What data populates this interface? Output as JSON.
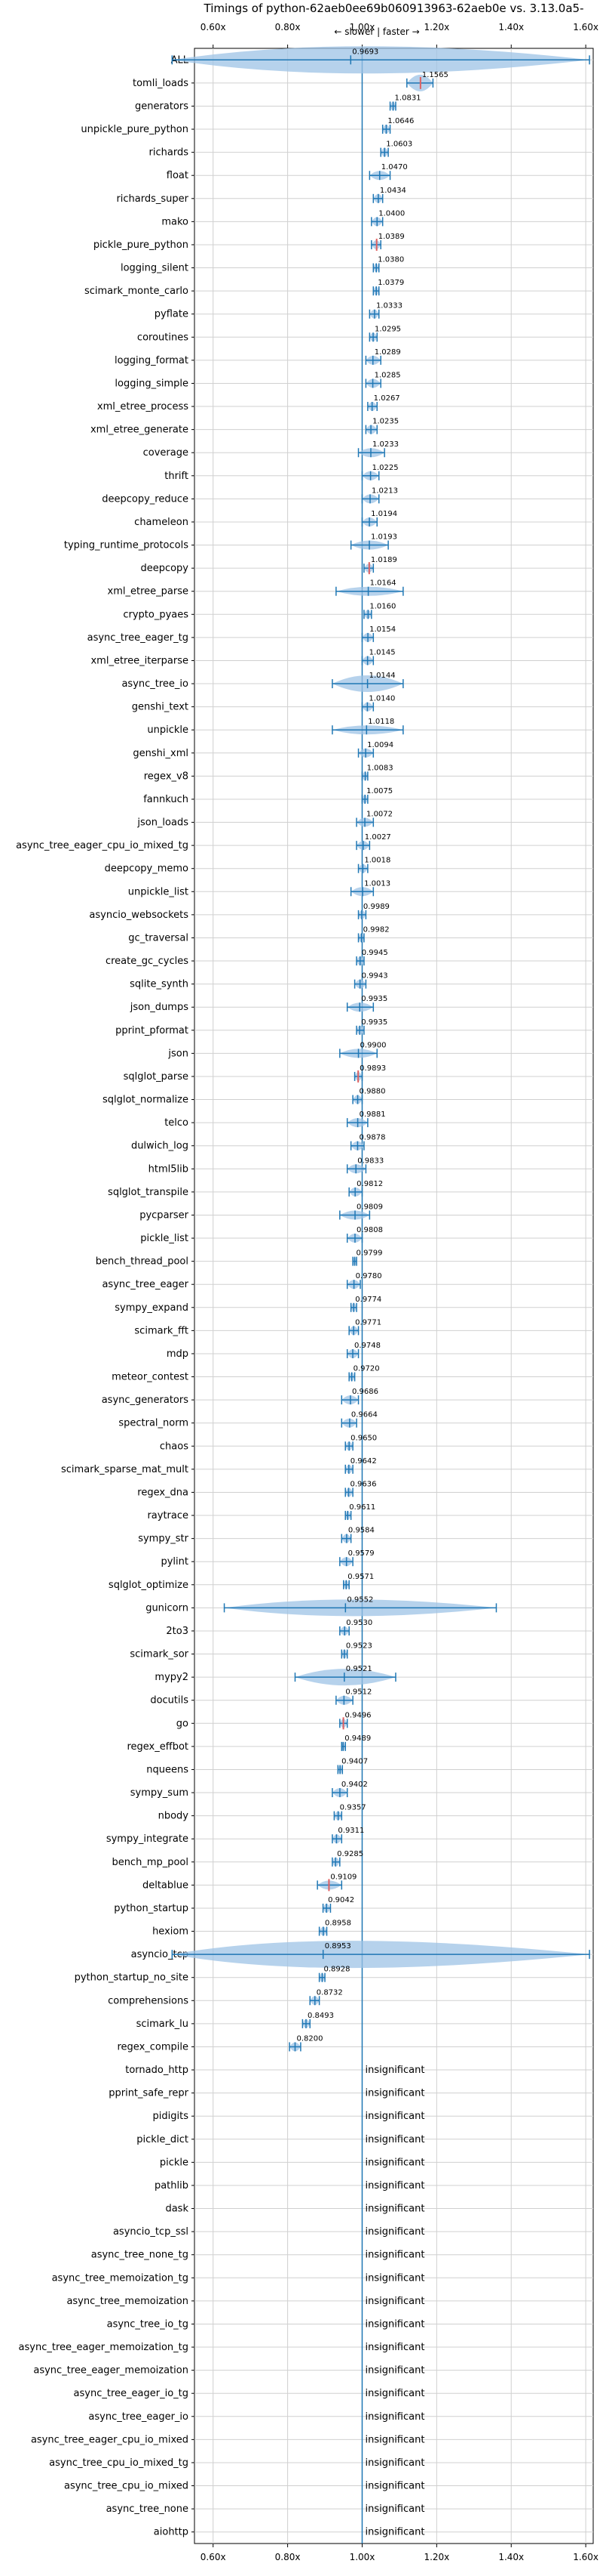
{
  "chart_data": {
    "type": "violin",
    "title": "Timings of python-62aeb0ee69b060913963-62aeb0e vs. 3.13.0a5-",
    "direction_note": "← slower | faster →",
    "x_ticks": [
      "0.60x",
      "0.80x",
      "1.00x",
      "1.20x",
      "1.40x",
      "1.60x"
    ],
    "x_tick_values": [
      0.6,
      0.8,
      1.0,
      1.2,
      1.4,
      1.6
    ],
    "xlim": [
      0.55,
      1.62
    ],
    "reference_line": 1.0,
    "grid": true,
    "insignificant_label": "insignificant",
    "colors": {
      "violin": "#9dc3e6",
      "line": "#1f77b4",
      "significant_marker": "#e06060",
      "grid": "#d0d0d0"
    },
    "benchmarks": [
      {
        "name": "ALL",
        "value": 0.9693,
        "label": "0.9693",
        "lo": 0.49,
        "hi": 1.61,
        "spread": "wide"
      },
      {
        "name": "tomli_loads",
        "value": 1.1565,
        "label": "1.1565",
        "lo": 1.12,
        "hi": 1.19,
        "spread": "mid",
        "marked": true
      },
      {
        "name": "generators",
        "value": 1.0831,
        "label": "1.0831",
        "lo": 1.075,
        "hi": 1.09,
        "spread": "narrow"
      },
      {
        "name": "unpickle_pure_python",
        "value": 1.0646,
        "label": "1.0646",
        "lo": 1.055,
        "hi": 1.075,
        "spread": "narrow"
      },
      {
        "name": "richards",
        "value": 1.0603,
        "label": "1.0603",
        "lo": 1.05,
        "hi": 1.07,
        "spread": "narrow"
      },
      {
        "name": "float",
        "value": 1.047,
        "label": "1.0470",
        "lo": 1.02,
        "hi": 1.075,
        "spread": "narrow"
      },
      {
        "name": "richards_super",
        "value": 1.0434,
        "label": "1.0434",
        "lo": 1.03,
        "hi": 1.055,
        "spread": "narrow"
      },
      {
        "name": "mako",
        "value": 1.04,
        "label": "1.0400",
        "lo": 1.025,
        "hi": 1.055,
        "spread": "narrow"
      },
      {
        "name": "pickle_pure_python",
        "value": 1.0389,
        "label": "1.0389",
        "lo": 1.025,
        "hi": 1.05,
        "spread": "narrow",
        "marked": true
      },
      {
        "name": "logging_silent",
        "value": 1.038,
        "label": "1.0380",
        "lo": 1.03,
        "hi": 1.045,
        "spread": "narrow"
      },
      {
        "name": "scimark_monte_carlo",
        "value": 1.0379,
        "label": "1.0379",
        "lo": 1.03,
        "hi": 1.045,
        "spread": "narrow"
      },
      {
        "name": "pyflate",
        "value": 1.0333,
        "label": "1.0333",
        "lo": 1.02,
        "hi": 1.045,
        "spread": "narrow"
      },
      {
        "name": "coroutines",
        "value": 1.0295,
        "label": "1.0295",
        "lo": 1.02,
        "hi": 1.04,
        "spread": "narrow"
      },
      {
        "name": "logging_format",
        "value": 1.0289,
        "label": "1.0289",
        "lo": 1.01,
        "hi": 1.05,
        "spread": "narrow"
      },
      {
        "name": "logging_simple",
        "value": 1.0285,
        "label": "1.0285",
        "lo": 1.01,
        "hi": 1.05,
        "spread": "narrow"
      },
      {
        "name": "xml_etree_process",
        "value": 1.0267,
        "label": "1.0267",
        "lo": 1.015,
        "hi": 1.04,
        "spread": "narrow"
      },
      {
        "name": "xml_etree_generate",
        "value": 1.0235,
        "label": "1.0235",
        "lo": 1.01,
        "hi": 1.04,
        "spread": "narrow"
      },
      {
        "name": "coverage",
        "value": 1.0233,
        "label": "1.0233",
        "lo": 0.99,
        "hi": 1.06,
        "spread": "narrow"
      },
      {
        "name": "thrift",
        "value": 1.0225,
        "label": "1.0225",
        "lo": 1.0,
        "hi": 1.045,
        "spread": "narrow"
      },
      {
        "name": "deepcopy_reduce",
        "value": 1.0213,
        "label": "1.0213",
        "lo": 1.0,
        "hi": 1.045,
        "spread": "narrow"
      },
      {
        "name": "chameleon",
        "value": 1.0194,
        "label": "1.0194",
        "lo": 1.0,
        "hi": 1.04,
        "spread": "narrow"
      },
      {
        "name": "typing_runtime_protocols",
        "value": 1.0193,
        "label": "1.0193",
        "lo": 0.97,
        "hi": 1.07,
        "spread": "narrow"
      },
      {
        "name": "deepcopy",
        "value": 1.0189,
        "label": "1.0189",
        "lo": 1.005,
        "hi": 1.03,
        "spread": "narrow",
        "marked": true
      },
      {
        "name": "xml_etree_parse",
        "value": 1.0164,
        "label": "1.0164",
        "lo": 0.93,
        "hi": 1.11,
        "spread": "narrow"
      },
      {
        "name": "crypto_pyaes",
        "value": 1.016,
        "label": "1.0160",
        "lo": 1.005,
        "hi": 1.025,
        "spread": "narrow"
      },
      {
        "name": "async_tree_eager_tg",
        "value": 1.0154,
        "label": "1.0154",
        "lo": 1.0,
        "hi": 1.03,
        "spread": "narrow"
      },
      {
        "name": "xml_etree_iterparse",
        "value": 1.0145,
        "label": "1.0145",
        "lo": 1.0,
        "hi": 1.03,
        "spread": "narrow"
      },
      {
        "name": "async_tree_io",
        "value": 1.0144,
        "label": "1.0144",
        "lo": 0.92,
        "hi": 1.11,
        "spread": "mid"
      },
      {
        "name": "genshi_text",
        "value": 1.014,
        "label": "1.0140",
        "lo": 1.0,
        "hi": 1.03,
        "spread": "narrow"
      },
      {
        "name": "unpickle",
        "value": 1.0118,
        "label": "1.0118",
        "lo": 0.92,
        "hi": 1.11,
        "spread": "narrow"
      },
      {
        "name": "genshi_xml",
        "value": 1.0094,
        "label": "1.0094",
        "lo": 0.99,
        "hi": 1.03,
        "spread": "narrow"
      },
      {
        "name": "regex_v8",
        "value": 1.0083,
        "label": "1.0083",
        "lo": 1.0,
        "hi": 1.015,
        "spread": "narrow"
      },
      {
        "name": "fannkuch",
        "value": 1.0075,
        "label": "1.0075",
        "lo": 1.0,
        "hi": 1.015,
        "spread": "narrow"
      },
      {
        "name": "json_loads",
        "value": 1.0072,
        "label": "1.0072",
        "lo": 0.985,
        "hi": 1.03,
        "spread": "narrow"
      },
      {
        "name": "async_tree_eager_cpu_io_mixed_tg",
        "value": 1.0027,
        "label": "1.0027",
        "lo": 0.985,
        "hi": 1.02,
        "spread": "narrow"
      },
      {
        "name": "deepcopy_memo",
        "value": 1.0018,
        "label": "1.0018",
        "lo": 0.99,
        "hi": 1.015,
        "spread": "narrow"
      },
      {
        "name": "unpickle_list",
        "value": 1.0013,
        "label": "1.0013",
        "lo": 0.97,
        "hi": 1.03,
        "spread": "narrow"
      },
      {
        "name": "asyncio_websockets",
        "value": 0.9989,
        "label": "0.9989",
        "lo": 0.99,
        "hi": 1.01,
        "spread": "narrow"
      },
      {
        "name": "gc_traversal",
        "value": 0.9982,
        "label": "0.9982",
        "lo": 0.99,
        "hi": 1.005,
        "spread": "narrow"
      },
      {
        "name": "create_gc_cycles",
        "value": 0.9945,
        "label": "0.9945",
        "lo": 0.985,
        "hi": 1.005,
        "spread": "narrow"
      },
      {
        "name": "sqlite_synth",
        "value": 0.9943,
        "label": "0.9943",
        "lo": 0.98,
        "hi": 1.01,
        "spread": "narrow"
      },
      {
        "name": "json_dumps",
        "value": 0.9935,
        "label": "0.9935",
        "lo": 0.96,
        "hi": 1.03,
        "spread": "narrow"
      },
      {
        "name": "pprint_pformat",
        "value": 0.9935,
        "label": "0.9935",
        "lo": 0.985,
        "hi": 1.005,
        "spread": "narrow"
      },
      {
        "name": "json",
        "value": 0.99,
        "label": "0.9900",
        "lo": 0.94,
        "hi": 1.04,
        "spread": "narrow"
      },
      {
        "name": "sqlglot_parse",
        "value": 0.9893,
        "label": "0.9893",
        "lo": 0.98,
        "hi": 1.0,
        "spread": "narrow",
        "marked": true
      },
      {
        "name": "sqlglot_normalize",
        "value": 0.988,
        "label": "0.9880",
        "lo": 0.975,
        "hi": 1.0,
        "spread": "narrow"
      },
      {
        "name": "telco",
        "value": 0.9881,
        "label": "0.9881",
        "lo": 0.96,
        "hi": 1.015,
        "spread": "narrow"
      },
      {
        "name": "dulwich_log",
        "value": 0.9878,
        "label": "0.9878",
        "lo": 0.97,
        "hi": 1.005,
        "spread": "narrow"
      },
      {
        "name": "html5lib",
        "value": 0.9833,
        "label": "0.9833",
        "lo": 0.96,
        "hi": 1.01,
        "spread": "narrow"
      },
      {
        "name": "sqlglot_transpile",
        "value": 0.9812,
        "label": "0.9812",
        "lo": 0.965,
        "hi": 1.0,
        "spread": "narrow"
      },
      {
        "name": "pycparser",
        "value": 0.9809,
        "label": "0.9809",
        "lo": 0.94,
        "hi": 1.02,
        "spread": "narrow"
      },
      {
        "name": "pickle_list",
        "value": 0.9808,
        "label": "0.9808",
        "lo": 0.96,
        "hi": 1.0,
        "spread": "narrow"
      },
      {
        "name": "bench_thread_pool",
        "value": 0.9799,
        "label": "0.9799",
        "lo": 0.975,
        "hi": 0.985,
        "spread": "narrow"
      },
      {
        "name": "async_tree_eager",
        "value": 0.978,
        "label": "0.9780",
        "lo": 0.96,
        "hi": 0.995,
        "spread": "narrow"
      },
      {
        "name": "sympy_expand",
        "value": 0.9774,
        "label": "0.9774",
        "lo": 0.97,
        "hi": 0.985,
        "spread": "narrow"
      },
      {
        "name": "scimark_fft",
        "value": 0.9771,
        "label": "0.9771",
        "lo": 0.965,
        "hi": 0.99,
        "spread": "narrow"
      },
      {
        "name": "mdp",
        "value": 0.9748,
        "label": "0.9748",
        "lo": 0.96,
        "hi": 0.99,
        "spread": "narrow"
      },
      {
        "name": "meteor_contest",
        "value": 0.972,
        "label": "0.9720",
        "lo": 0.965,
        "hi": 0.98,
        "spread": "narrow"
      },
      {
        "name": "async_generators",
        "value": 0.9686,
        "label": "0.9686",
        "lo": 0.945,
        "hi": 0.99,
        "spread": "narrow"
      },
      {
        "name": "spectral_norm",
        "value": 0.9664,
        "label": "0.9664",
        "lo": 0.945,
        "hi": 0.985,
        "spread": "narrow"
      },
      {
        "name": "chaos",
        "value": 0.965,
        "label": "0.9650",
        "lo": 0.955,
        "hi": 0.975,
        "spread": "narrow"
      },
      {
        "name": "scimark_sparse_mat_mult",
        "value": 0.9642,
        "label": "0.9642",
        "lo": 0.955,
        "hi": 0.975,
        "spread": "narrow"
      },
      {
        "name": "regex_dna",
        "value": 0.9636,
        "label": "0.9636",
        "lo": 0.955,
        "hi": 0.975,
        "spread": "narrow"
      },
      {
        "name": "raytrace",
        "value": 0.9611,
        "label": "0.9611",
        "lo": 0.955,
        "hi": 0.97,
        "spread": "narrow"
      },
      {
        "name": "sympy_str",
        "value": 0.9584,
        "label": "0.9584",
        "lo": 0.945,
        "hi": 0.97,
        "spread": "narrow"
      },
      {
        "name": "pylint",
        "value": 0.9579,
        "label": "0.9579",
        "lo": 0.94,
        "hi": 0.975,
        "spread": "narrow"
      },
      {
        "name": "sqlglot_optimize",
        "value": 0.9571,
        "label": "0.9571",
        "lo": 0.95,
        "hi": 0.965,
        "spread": "narrow"
      },
      {
        "name": "gunicorn",
        "value": 0.9552,
        "label": "0.9552",
        "lo": 0.63,
        "hi": 1.36,
        "spread": "mid"
      },
      {
        "name": "2to3",
        "value": 0.953,
        "label": "0.9530",
        "lo": 0.94,
        "hi": 0.965,
        "spread": "narrow"
      },
      {
        "name": "scimark_sor",
        "value": 0.9523,
        "label": "0.9523",
        "lo": 0.945,
        "hi": 0.96,
        "spread": "narrow"
      },
      {
        "name": "mypy2",
        "value": 0.9521,
        "label": "0.9521",
        "lo": 0.82,
        "hi": 1.09,
        "spread": "mid"
      },
      {
        "name": "docutils",
        "value": 0.9512,
        "label": "0.9512",
        "lo": 0.93,
        "hi": 0.975,
        "spread": "narrow"
      },
      {
        "name": "go",
        "value": 0.9496,
        "label": "0.9496",
        "lo": 0.94,
        "hi": 0.96,
        "spread": "narrow",
        "marked": true
      },
      {
        "name": "regex_effbot",
        "value": 0.9489,
        "label": "0.9489",
        "lo": 0.945,
        "hi": 0.955,
        "spread": "narrow"
      },
      {
        "name": "nqueens",
        "value": 0.9407,
        "label": "0.9407",
        "lo": 0.935,
        "hi": 0.947,
        "spread": "narrow"
      },
      {
        "name": "sympy_sum",
        "value": 0.9402,
        "label": "0.9402",
        "lo": 0.92,
        "hi": 0.96,
        "spread": "narrow"
      },
      {
        "name": "nbody",
        "value": 0.9357,
        "label": "0.9357",
        "lo": 0.925,
        "hi": 0.945,
        "spread": "narrow"
      },
      {
        "name": "sympy_integrate",
        "value": 0.9311,
        "label": "0.9311",
        "lo": 0.92,
        "hi": 0.945,
        "spread": "narrow"
      },
      {
        "name": "bench_mp_pool",
        "value": 0.9285,
        "label": "0.9285",
        "lo": 0.92,
        "hi": 0.94,
        "spread": "narrow"
      },
      {
        "name": "deltablue",
        "value": 0.9109,
        "label": "0.9109",
        "lo": 0.88,
        "hi": 0.945,
        "spread": "narrow",
        "marked": true
      },
      {
        "name": "python_startup",
        "value": 0.9042,
        "label": "0.9042",
        "lo": 0.895,
        "hi": 0.915,
        "spread": "narrow"
      },
      {
        "name": "hexiom",
        "value": 0.8958,
        "label": "0.8958",
        "lo": 0.885,
        "hi": 0.905,
        "spread": "narrow"
      },
      {
        "name": "asyncio_tcp",
        "value": 0.8953,
        "label": "0.8953",
        "lo": 0.49,
        "hi": 1.61,
        "spread": "wide"
      },
      {
        "name": "python_startup_no_site",
        "value": 0.8928,
        "label": "0.8928",
        "lo": 0.885,
        "hi": 0.9,
        "spread": "narrow"
      },
      {
        "name": "comprehensions",
        "value": 0.8732,
        "label": "0.8732",
        "lo": 0.86,
        "hi": 0.885,
        "spread": "narrow"
      },
      {
        "name": "scimark_lu",
        "value": 0.8493,
        "label": "0.8493",
        "lo": 0.84,
        "hi": 0.86,
        "spread": "narrow"
      },
      {
        "name": "regex_compile",
        "value": 0.82,
        "label": "0.8200",
        "lo": 0.805,
        "hi": 0.835,
        "spread": "narrow"
      },
      {
        "name": "tornado_http",
        "insignificant": true
      },
      {
        "name": "pprint_safe_repr",
        "insignificant": true
      },
      {
        "name": "pidigits",
        "insignificant": true
      },
      {
        "name": "pickle_dict",
        "insignificant": true
      },
      {
        "name": "pickle",
        "insignificant": true
      },
      {
        "name": "pathlib",
        "insignificant": true
      },
      {
        "name": "dask",
        "insignificant": true
      },
      {
        "name": "asyncio_tcp_ssl",
        "insignificant": true
      },
      {
        "name": "async_tree_none_tg",
        "insignificant": true
      },
      {
        "name": "async_tree_memoization_tg",
        "insignificant": true
      },
      {
        "name": "async_tree_memoization",
        "insignificant": true
      },
      {
        "name": "async_tree_io_tg",
        "insignificant": true
      },
      {
        "name": "async_tree_eager_memoization_tg",
        "insignificant": true
      },
      {
        "name": "async_tree_eager_memoization",
        "insignificant": true
      },
      {
        "name": "async_tree_eager_io_tg",
        "insignificant": true
      },
      {
        "name": "async_tree_eager_io",
        "insignificant": true
      },
      {
        "name": "async_tree_eager_cpu_io_mixed",
        "insignificant": true
      },
      {
        "name": "async_tree_cpu_io_mixed_tg",
        "insignificant": true
      },
      {
        "name": "async_tree_cpu_io_mixed",
        "insignificant": true
      },
      {
        "name": "async_tree_none",
        "insignificant": true
      },
      {
        "name": "aiohttp",
        "insignificant": true
      }
    ]
  }
}
